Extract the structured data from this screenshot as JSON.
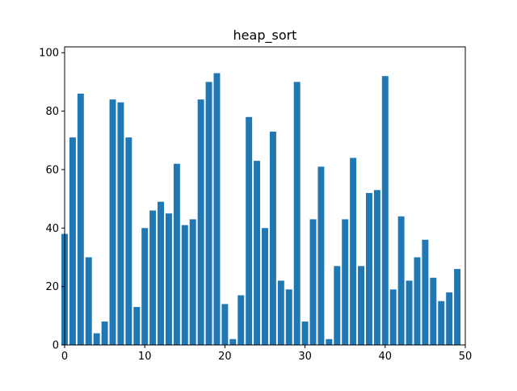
{
  "chart_data": {
    "type": "bar",
    "title": "heap_sort",
    "xlabel": "",
    "ylabel": "",
    "xlim": [
      0,
      50
    ],
    "ylim": [
      0,
      102
    ],
    "xticks": [
      0,
      10,
      20,
      30,
      40,
      50
    ],
    "yticks": [
      0,
      20,
      40,
      60,
      80,
      100
    ],
    "x": [
      0,
      1,
      2,
      3,
      4,
      5,
      6,
      7,
      8,
      9,
      10,
      11,
      12,
      13,
      14,
      15,
      16,
      17,
      18,
      19,
      20,
      21,
      22,
      23,
      24,
      25,
      26,
      27,
      28,
      29,
      30,
      31,
      32,
      33,
      34,
      35,
      36,
      37,
      38,
      39,
      40,
      41,
      42,
      43,
      44,
      45,
      46,
      47,
      48,
      49
    ],
    "values": [
      38,
      71,
      86,
      30,
      4,
      8,
      84,
      83,
      71,
      13,
      40,
      46,
      49,
      45,
      62,
      41,
      43,
      84,
      90,
      93,
      14,
      2,
      17,
      78,
      63,
      40,
      73,
      22,
      19,
      90,
      8,
      43,
      61,
      2,
      27,
      43,
      64,
      27,
      52,
      53,
      92,
      19,
      44,
      22,
      30,
      36,
      23,
      15,
      18,
      26
    ],
    "bar_color": "#1f77b4",
    "grid": false,
    "legend": "none"
  }
}
